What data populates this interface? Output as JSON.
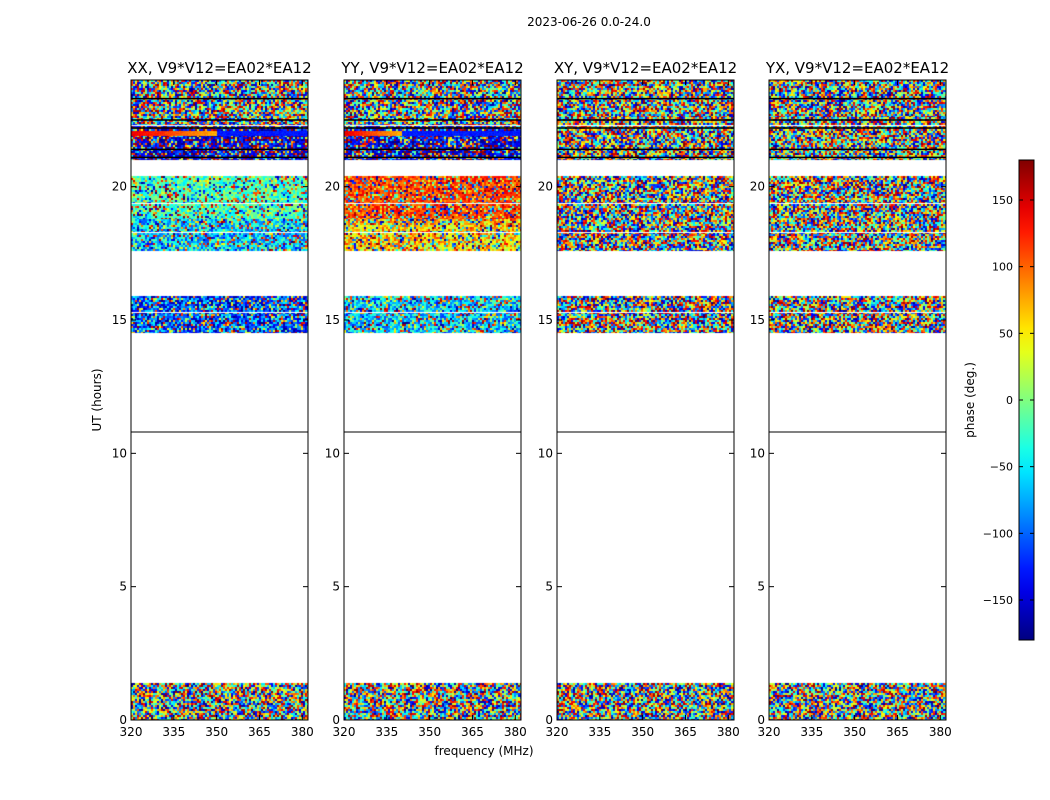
{
  "figure": {
    "suptitle": "2023-06-26 0.0-24.0",
    "xlabel": "frequency (MHz)",
    "ylabel": "UT (hours)",
    "colorbar_label": "phase (deg.)"
  },
  "chart_data": {
    "type": "heatmap",
    "title": "2023-06-26 0.0-24.0",
    "xlabel": "frequency (MHz)",
    "ylabel": "UT (hours)",
    "xlim": [
      320,
      382
    ],
    "ylim": [
      0,
      24
    ],
    "x_ticks": [
      320,
      335,
      350,
      365,
      380
    ],
    "y_ticks": [
      0,
      5,
      10,
      15,
      20
    ],
    "colormap": "jet",
    "colorbar": {
      "label": "phase (deg.)",
      "range": [
        -180,
        180
      ],
      "ticks": [
        -150,
        -100,
        -50,
        0,
        50,
        100,
        150
      ]
    },
    "panels": [
      {
        "title": "XX, V9*V12=EA02*EA12",
        "blocks": [
          {
            "t": [
              0.0,
              1.4
            ],
            "mode": "random"
          },
          {
            "t": [
              14.5,
              15.9
            ],
            "mode": "random",
            "bias": -110,
            "spread": 140
          },
          {
            "t": [
              17.6,
              18.8
            ],
            "mode": "random",
            "bias": -60,
            "spread": 110
          },
          {
            "t": [
              18.8,
              20.4
            ],
            "mode": "random",
            "bias": -20,
            "spread": 70
          },
          {
            "t": [
              21.0,
              22.3
            ],
            "mode": "random",
            "bias": -150,
            "spread": 90
          },
          {
            "t": [
              22.3,
              24.0
            ],
            "mode": "random"
          }
        ],
        "bright_band": {
          "t": [
            21.9,
            22.1
          ],
          "hot_end": 350
        }
      },
      {
        "title": "YY, V9*V12=EA02*EA12",
        "blocks": [
          {
            "t": [
              0.0,
              1.4
            ],
            "mode": "random"
          },
          {
            "t": [
              14.5,
              15.9
            ],
            "mode": "random",
            "bias": -60,
            "spread": 110
          },
          {
            "t": [
              17.6,
              18.8
            ],
            "mode": "random",
            "bias": 60,
            "spread": 110
          },
          {
            "t": [
              18.8,
              20.4
            ],
            "mode": "random",
            "bias": 110,
            "spread": 70
          },
          {
            "t": [
              21.0,
              22.3
            ],
            "mode": "random",
            "bias": -150,
            "spread": 90
          },
          {
            "t": [
              22.3,
              24.0
            ],
            "mode": "random"
          }
        ],
        "bright_band": {
          "t": [
            21.9,
            22.1
          ],
          "hot_end": 340
        }
      },
      {
        "title": "XY, V9*V12=EA02*EA12",
        "blocks": [
          {
            "t": [
              0.0,
              1.4
            ],
            "mode": "random"
          },
          {
            "t": [
              14.5,
              15.9
            ],
            "mode": "random"
          },
          {
            "t": [
              17.6,
              20.4
            ],
            "mode": "random"
          },
          {
            "t": [
              21.0,
              22.6
            ],
            "mode": "random"
          },
          {
            "t": [
              22.6,
              24.0
            ],
            "mode": "random"
          }
        ]
      },
      {
        "title": "YX, V9*V12=EA02*EA12",
        "blocks": [
          {
            "t": [
              0.0,
              1.4
            ],
            "mode": "random"
          },
          {
            "t": [
              14.5,
              15.9
            ],
            "mode": "random"
          },
          {
            "t": [
              17.6,
              20.4
            ],
            "mode": "random"
          },
          {
            "t": [
              21.0,
              22.6
            ],
            "mode": "random"
          },
          {
            "t": [
              22.6,
              24.0
            ],
            "mode": "random"
          }
        ]
      }
    ],
    "white_gap_lines": [
      19.4,
      18.3,
      15.3,
      22.3
    ],
    "black_lines": [
      10.8,
      21.1,
      21.4,
      22.2,
      22.5,
      23.3
    ]
  }
}
